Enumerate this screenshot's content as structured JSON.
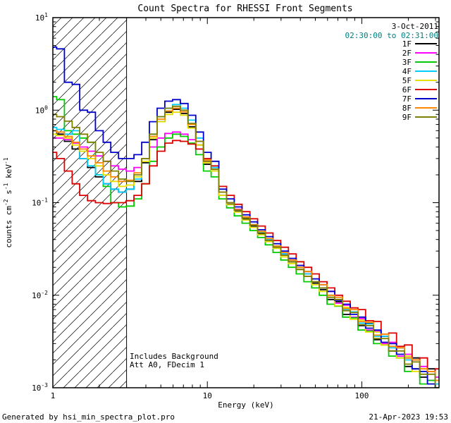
{
  "title": "Count Spectra for RHESSI Front Segments",
  "header": {
    "date": "3-Oct-2011",
    "time_range": "02:30:00 to 02:31:00",
    "time_color": "#007f7f"
  },
  "footer": {
    "left": "Generated by hsi_min_spectra_plot.pro",
    "right": "21-Apr-2023 19:53"
  },
  "chart_data": {
    "type": "line",
    "title": "Count Spectra for RHESSI Front Segments",
    "xlabel": "Energy (keV)",
    "ylabel": "counts cm^-2 s^-1 keV^-1",
    "ylabel_parts": [
      {
        "t": "counts cm"
      },
      {
        "t": "-2",
        "sup": true
      },
      {
        "t": " s"
      },
      {
        "t": "-1",
        "sup": true
      },
      {
        "t": " keV"
      },
      {
        "t": "-1",
        "sup": true
      }
    ],
    "xscale": "log",
    "yscale": "log",
    "xlim": [
      1,
      316
    ],
    "ylim": [
      0.001,
      10
    ],
    "grid": false,
    "legend_position": "top-right-inside",
    "annotations": [
      "Includes Background",
      "Att A0, FDecim 1"
    ],
    "hatch_region": {
      "x_from": 1,
      "x_to": 3,
      "style": "diagonal-lines"
    },
    "xticks": [
      {
        "v": 1,
        "label": "1"
      },
      {
        "v": 10,
        "label": "10"
      },
      {
        "v": 100,
        "label": "100"
      }
    ],
    "yticks": [
      {
        "v": 0.001,
        "label": "10^-3"
      },
      {
        "v": 0.01,
        "label": "10^-2"
      },
      {
        "v": 0.1,
        "label": "10^-1"
      },
      {
        "v": 1,
        "label": "10^0"
      },
      {
        "v": 10,
        "label": "10^1"
      }
    ],
    "x": [
      1.0,
      1.12,
      1.26,
      1.41,
      1.58,
      1.78,
      2.0,
      2.24,
      2.51,
      2.82,
      3.16,
      3.55,
      3.98,
      4.47,
      5.01,
      5.62,
      6.31,
      7.08,
      7.94,
      8.91,
      10.0,
      11.2,
      12.6,
      14.1,
      15.8,
      17.8,
      20.0,
      22.4,
      25.1,
      28.2,
      31.6,
      35.5,
      39.8,
      44.7,
      50.1,
      56.2,
      63.1,
      70.8,
      79.4,
      89.1,
      100,
      112,
      126,
      141,
      158,
      178,
      200,
      224,
      251,
      282,
      316
    ],
    "series": [
      {
        "name": "1F",
        "color": "#000000",
        "values": [
          0.6,
          0.55,
          0.46,
          0.38,
          0.3,
          0.24,
          0.19,
          0.16,
          0.14,
          0.13,
          0.14,
          0.17,
          0.27,
          0.48,
          0.75,
          0.95,
          1.02,
          0.92,
          0.66,
          0.42,
          0.26,
          0.22,
          0.12,
          0.096,
          0.08,
          0.066,
          0.056,
          0.046,
          0.039,
          0.033,
          0.027,
          0.023,
          0.019,
          0.016,
          0.0135,
          0.0115,
          0.009,
          0.0085,
          0.0062,
          0.0066,
          0.0047,
          0.005,
          0.0033,
          0.0036,
          0.0025,
          0.0027,
          0.0017,
          0.0021,
          0.0013,
          0.0016,
          0.001
        ]
      },
      {
        "name": "2F",
        "color": "#ff00ff",
        "values": [
          0.5,
          0.5,
          0.48,
          0.44,
          0.4,
          0.36,
          0.32,
          0.28,
          0.25,
          0.23,
          0.22,
          0.24,
          0.3,
          0.4,
          0.5,
          0.56,
          0.58,
          0.55,
          0.48,
          0.38,
          0.28,
          0.23,
          0.13,
          0.1,
          0.085,
          0.07,
          0.058,
          0.048,
          0.04,
          0.034,
          0.028,
          0.024,
          0.021,
          0.017,
          0.015,
          0.012,
          0.011,
          0.0082,
          0.0078,
          0.0058,
          0.0056,
          0.0042,
          0.0041,
          0.003,
          0.0031,
          0.0022,
          0.0023,
          0.0016,
          0.0017,
          0.0012,
          0.0013
        ]
      },
      {
        "name": "3F",
        "color": "#00cc00",
        "values": [
          1.4,
          1.3,
          0.6,
          0.55,
          0.5,
          0.45,
          0.2,
          0.15,
          0.1,
          0.09,
          0.092,
          0.11,
          0.16,
          0.28,
          0.4,
          0.5,
          0.55,
          0.52,
          0.44,
          0.33,
          0.22,
          0.19,
          0.11,
          0.088,
          0.072,
          0.06,
          0.05,
          0.042,
          0.035,
          0.029,
          0.024,
          0.02,
          0.017,
          0.014,
          0.012,
          0.01,
          0.008,
          0.0076,
          0.0058,
          0.0057,
          0.0042,
          0.0041,
          0.003,
          0.0029,
          0.0022,
          0.0021,
          0.0015,
          0.0016,
          0.0011,
          0.0012,
          0.0008
        ]
      },
      {
        "name": "4F",
        "color": "#00ccff",
        "values": [
          0.65,
          0.62,
          0.55,
          0.6,
          0.3,
          0.25,
          0.2,
          0.16,
          0.14,
          0.13,
          0.14,
          0.18,
          0.3,
          0.55,
          0.85,
          1.05,
          1.15,
          1.05,
          0.78,
          0.5,
          0.3,
          0.24,
          0.13,
          0.1,
          0.084,
          0.069,
          0.058,
          0.048,
          0.04,
          0.034,
          0.028,
          0.024,
          0.02,
          0.017,
          0.014,
          0.012,
          0.01,
          0.009,
          0.007,
          0.0066,
          0.005,
          0.0049,
          0.0036,
          0.0036,
          0.0027,
          0.0027,
          0.002,
          0.002,
          0.0015,
          0.0015,
          0.0011
        ]
      },
      {
        "name": "5F",
        "color": "#e6e000",
        "values": [
          0.55,
          0.53,
          0.5,
          0.42,
          0.36,
          0.3,
          0.25,
          0.2,
          0.17,
          0.15,
          0.155,
          0.19,
          0.28,
          0.5,
          0.75,
          0.9,
          0.95,
          0.88,
          0.64,
          0.42,
          0.27,
          0.22,
          0.12,
          0.095,
          0.079,
          0.065,
          0.054,
          0.045,
          0.038,
          0.032,
          0.026,
          0.022,
          0.019,
          0.016,
          0.013,
          0.011,
          0.0095,
          0.0077,
          0.0074,
          0.0055,
          0.0054,
          0.004,
          0.004,
          0.0029,
          0.003,
          0.0021,
          0.0022,
          0.0015,
          0.0016,
          0.0011,
          0.0012
        ]
      },
      {
        "name": "6F",
        "color": "#dd0000",
        "values": [
          0.35,
          0.3,
          0.22,
          0.16,
          0.12,
          0.105,
          0.1,
          0.098,
          0.1,
          0.1,
          0.105,
          0.12,
          0.16,
          0.25,
          0.36,
          0.44,
          0.47,
          0.46,
          0.43,
          0.38,
          0.3,
          0.25,
          0.15,
          0.12,
          0.096,
          0.08,
          0.067,
          0.056,
          0.047,
          0.039,
          0.033,
          0.028,
          0.023,
          0.02,
          0.017,
          0.014,
          0.012,
          0.01,
          0.0086,
          0.0073,
          0.007,
          0.0053,
          0.0052,
          0.0038,
          0.0039,
          0.0028,
          0.0029,
          0.002,
          0.0021,
          0.0015,
          0.0016
        ]
      },
      {
        "name": "7F",
        "color": "#0000cc",
        "values": [
          4.8,
          4.6,
          2.0,
          1.9,
          1.0,
          0.95,
          0.6,
          0.45,
          0.35,
          0.3,
          0.3,
          0.33,
          0.45,
          0.75,
          1.05,
          1.25,
          1.3,
          1.18,
          0.88,
          0.58,
          0.35,
          0.28,
          0.14,
          0.11,
          0.09,
          0.074,
          0.062,
          0.051,
          0.043,
          0.036,
          0.03,
          0.025,
          0.021,
          0.018,
          0.015,
          0.013,
          0.011,
          0.0088,
          0.008,
          0.0062,
          0.0058,
          0.0044,
          0.0042,
          0.0031,
          0.003,
          0.0023,
          0.0021,
          0.0016,
          0.0015,
          0.0011,
          0.0009
        ]
      },
      {
        "name": "8F",
        "color": "#ff8800",
        "values": [
          0.6,
          0.58,
          0.52,
          0.45,
          0.38,
          0.32,
          0.27,
          0.22,
          0.19,
          0.17,
          0.175,
          0.21,
          0.3,
          0.52,
          0.8,
          0.98,
          1.05,
          0.96,
          0.7,
          0.46,
          0.29,
          0.23,
          0.13,
          0.1,
          0.084,
          0.07,
          0.058,
          0.049,
          0.041,
          0.034,
          0.029,
          0.024,
          0.02,
          0.018,
          0.014,
          0.013,
          0.01,
          0.0095,
          0.0072,
          0.007,
          0.0052,
          0.0051,
          0.0037,
          0.0038,
          0.0028,
          0.0027,
          0.0021,
          0.002,
          0.0016,
          0.0015,
          0.0012
        ]
      },
      {
        "name": "9F",
        "color": "#808000",
        "values": [
          0.9,
          0.85,
          0.76,
          0.65,
          0.55,
          0.45,
          0.35,
          0.28,
          0.22,
          0.18,
          0.17,
          0.2,
          0.3,
          0.55,
          0.85,
          1.05,
          1.1,
          1.0,
          0.72,
          0.46,
          0.28,
          0.23,
          0.13,
          0.1,
          0.083,
          0.068,
          0.057,
          0.047,
          0.039,
          0.033,
          0.027,
          0.023,
          0.019,
          0.016,
          0.014,
          0.012,
          0.0095,
          0.009,
          0.0068,
          0.0065,
          0.0048,
          0.0047,
          0.0034,
          0.0034,
          0.0025,
          0.0025,
          0.0018,
          0.0019,
          0.0014,
          0.0014,
          0.001
        ]
      }
    ]
  }
}
